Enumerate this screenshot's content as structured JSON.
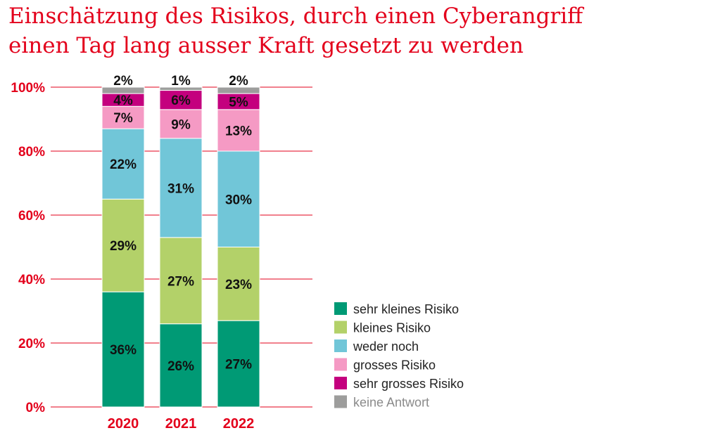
{
  "title_line1": "Einschätzung des Risikos, durch einen Cyberangriff",
  "title_line2": "einen Tag lang ausser Kraft gesetzt zu werden",
  "chart_data": {
    "type": "bar",
    "stacked": true,
    "categories": [
      "2020",
      "2021",
      "2022"
    ],
    "series": [
      {
        "name": "sehr kleines Risiko",
        "color": "#009a75",
        "values": [
          36,
          26,
          27
        ]
      },
      {
        "name": "kleines Risiko",
        "color": "#b3d169",
        "values": [
          29,
          27,
          23
        ]
      },
      {
        "name": "weder noch",
        "color": "#71c6d8",
        "values": [
          22,
          31,
          30
        ]
      },
      {
        "name": "grosses Risiko",
        "color": "#f59ac4",
        "values": [
          7,
          9,
          13
        ]
      },
      {
        "name": "sehr grosses Risiko",
        "color": "#c4007e",
        "values": [
          4,
          6,
          5
        ]
      },
      {
        "name": "keine Antwort",
        "color": "#9d9d9c",
        "values": [
          2,
          1,
          2
        ]
      }
    ],
    "ylim": [
      0,
      100
    ],
    "yticks": [
      "0%",
      "20%",
      "40%",
      "60%",
      "80%",
      "100%"
    ],
    "grid": true,
    "legend_position": "right",
    "accent_color": "#e3001b"
  }
}
